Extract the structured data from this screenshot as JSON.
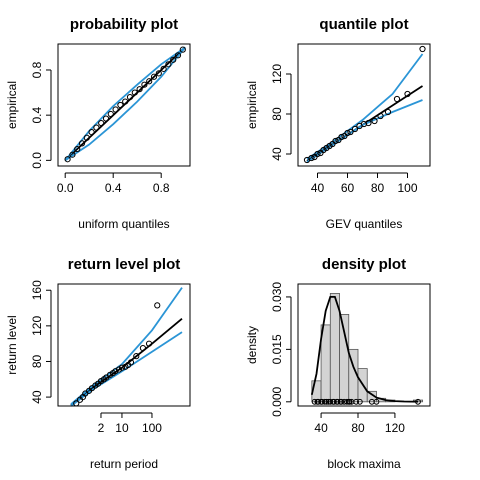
{
  "chart_data": [
    {
      "type": "scatter",
      "title": "probability plot",
      "xlabel": "uniform quantiles",
      "ylabel": "empirical",
      "xlim": [
        -0.06,
        1.04
      ],
      "ylim": [
        -0.05,
        1.03
      ],
      "xticks": [
        {
          "value": 0,
          "label": "0.0"
        },
        {
          "value": 0.4,
          "label": "0.4"
        },
        {
          "value": 0.8,
          "label": "0.8"
        }
      ],
      "yticks": [
        {
          "value": 0,
          "label": "0.0"
        },
        {
          "value": 0.4,
          "label": "0.4"
        },
        {
          "value": 0.8,
          "label": "0.8"
        }
      ],
      "point_color": "#000000",
      "points": {
        "x": [
          0.02,
          0.06,
          0.1,
          0.14,
          0.18,
          0.22,
          0.26,
          0.3,
          0.34,
          0.38,
          0.42,
          0.46,
          0.5,
          0.54,
          0.58,
          0.62,
          0.66,
          0.7,
          0.74,
          0.78,
          0.82,
          0.86,
          0.9,
          0.94,
          0.98
        ],
        "y": [
          0.01,
          0.05,
          0.1,
          0.15,
          0.2,
          0.25,
          0.29,
          0.33,
          0.37,
          0.41,
          0.45,
          0.49,
          0.52,
          0.56,
          0.6,
          0.63,
          0.67,
          0.7,
          0.74,
          0.77,
          0.81,
          0.85,
          0.89,
          0.93,
          0.98
        ]
      },
      "lines": [
        {
          "color": "#000000",
          "x": [
            0,
            1
          ],
          "y": [
            0,
            1
          ]
        },
        {
          "color": "#2b95d6",
          "x": [
            0,
            0.2,
            0.4,
            0.6,
            0.8,
            1
          ],
          "y": [
            0,
            0.26,
            0.48,
            0.67,
            0.85,
            1
          ]
        },
        {
          "color": "#2b95d6",
          "x": [
            0,
            0.2,
            0.4,
            0.6,
            0.8,
            1
          ],
          "y": [
            0,
            0.14,
            0.32,
            0.52,
            0.74,
            1
          ]
        }
      ]
    },
    {
      "type": "scatter",
      "title": "quantile plot",
      "xlabel": "GEV quantiles",
      "ylabel": "empirical",
      "xlim": [
        27,
        115
      ],
      "ylim": [
        28,
        150
      ],
      "xticks": [
        40,
        60,
        80,
        100
      ],
      "yticks": [
        40,
        80,
        120
      ],
      "point_color": "#000000",
      "points": {
        "x": [
          33,
          36,
          38,
          40,
          42,
          44,
          46,
          48,
          50,
          52,
          54,
          56,
          58,
          60,
          62,
          65,
          68,
          71,
          74,
          78,
          82,
          87,
          93,
          100,
          110
        ],
        "y": [
          34,
          36,
          37,
          40,
          41,
          44,
          46,
          48,
          50,
          53,
          54,
          57,
          58,
          61,
          62,
          65,
          68,
          70,
          71,
          73,
          78,
          82,
          95,
          100,
          145
        ]
      },
      "lines": [
        {
          "color": "#000000",
          "x": [
            33,
            110
          ],
          "y": [
            33,
            108
          ]
        },
        {
          "color": "#2b95d6",
          "x": [
            33,
            50,
            70,
            90,
            110
          ],
          "y": [
            35,
            52,
            74,
            100,
            140
          ]
        },
        {
          "color": "#2b95d6",
          "x": [
            33,
            50,
            70,
            90,
            110
          ],
          "y": [
            32,
            49,
            69,
            82,
            94
          ]
        }
      ]
    },
    {
      "type": "scatter",
      "title": "return level plot",
      "xlabel": "return period",
      "ylabel": "return level",
      "xlog": true,
      "xlim": [
        0.074,
        1850
      ],
      "ylim": [
        30,
        167
      ],
      "xticks": [
        2,
        10,
        100
      ],
      "yticks": [
        40,
        80,
        120,
        160
      ],
      "point_color": "#000000",
      "points": {
        "x": [
          0.3,
          0.4,
          0.5,
          0.6,
          0.8,
          1,
          1.3,
          1.6,
          2,
          2.5,
          3,
          4,
          5,
          6,
          8,
          10,
          13,
          16,
          20,
          30,
          50,
          80,
          150
        ],
        "y": [
          33,
          37,
          40,
          44,
          47,
          50,
          53,
          55,
          58,
          60,
          62,
          65,
          67,
          69,
          71,
          73,
          74,
          76,
          79,
          86,
          95,
          100,
          143
        ]
      },
      "lines": [
        {
          "color": "#000000",
          "x": [
            0.2,
            1,
            10,
            100,
            1000
          ],
          "y": [
            31,
            50,
            73,
            100,
            128
          ]
        },
        {
          "color": "#2b95d6",
          "x": [
            0.2,
            1,
            10,
            100,
            1000
          ],
          "y": [
            32,
            52,
            77,
            115,
            163
          ]
        },
        {
          "color": "#2b95d6",
          "x": [
            0.2,
            1,
            10,
            100,
            1000
          ],
          "y": [
            30,
            48,
            69,
            91,
            113
          ]
        }
      ]
    },
    {
      "type": "histogram",
      "title": "density plot",
      "xlabel": "block maxima",
      "ylabel": "density",
      "xlim": [
        15,
        158
      ],
      "ylim": [
        -0.0012,
        0.0337
      ],
      "xticks": [
        40,
        80,
        120
      ],
      "yticks": [
        {
          "value": 0,
          "label": "0.000"
        },
        {
          "value": 0.015,
          "label": "0.015"
        },
        {
          "value": 0.03,
          "label": "0.030"
        }
      ],
      "fill": "#d3d3d3",
      "bins": [
        30,
        40,
        50,
        60,
        70,
        80,
        90,
        100,
        110,
        120,
        130,
        140,
        150
      ],
      "counts": [
        0.006,
        0.022,
        0.031,
        0.025,
        0.015,
        0.0095,
        0.003,
        0.001,
        0.0005,
        0,
        0,
        0.0005
      ],
      "rug": [
        33,
        36,
        37,
        40,
        41,
        44,
        46,
        48,
        50,
        53,
        54,
        57,
        58,
        61,
        62,
        65,
        68,
        70,
        71,
        73,
        78,
        82,
        95,
        100,
        145
      ],
      "lines": [
        {
          "color": "#000000",
          "x": [
            30,
            35,
            40,
            45,
            50,
            55,
            60,
            65,
            70,
            75,
            80,
            90,
            100,
            110,
            120,
            130,
            145
          ],
          "y": [
            0.002,
            0.008,
            0.018,
            0.026,
            0.03,
            0.03,
            0.026,
            0.02,
            0.014,
            0.01,
            0.007,
            0.003,
            0.0012,
            0.0005,
            0.0002,
            0.0001,
            3e-05
          ]
        }
      ]
    }
  ]
}
